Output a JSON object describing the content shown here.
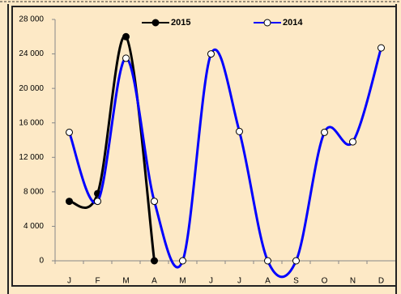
{
  "chart_data": {
    "type": "line",
    "categories": [
      "J",
      "F",
      "M",
      "A",
      "M",
      "J",
      "J",
      "A",
      "S",
      "O",
      "N",
      "D"
    ],
    "series": [
      {
        "name": "2015",
        "color": "#000000",
        "values": [
          6900,
          7800,
          26000,
          0,
          null,
          null,
          null,
          null,
          null,
          null,
          null,
          null
        ]
      },
      {
        "name": "2014",
        "color": "#0000ff",
        "values": [
          14900,
          6900,
          23500,
          6900,
          0,
          24000,
          15000,
          0,
          0,
          14900,
          13800,
          24700
        ]
      }
    ],
    "ylim": [
      0,
      28000
    ],
    "yticks": [
      {
        "value": 0,
        "label": "0"
      },
      {
        "value": 4000,
        "label": "4 000"
      },
      {
        "value": 8000,
        "label": "8 000"
      },
      {
        "value": 12000,
        "label": "12 000"
      },
      {
        "value": 16000,
        "label": "16 000"
      },
      {
        "value": 20000,
        "label": "20 000"
      },
      {
        "value": 24000,
        "label": "24 000"
      },
      {
        "value": 28000,
        "label": "28 000"
      }
    ],
    "grid": false,
    "smooth": true,
    "legend": "top"
  }
}
